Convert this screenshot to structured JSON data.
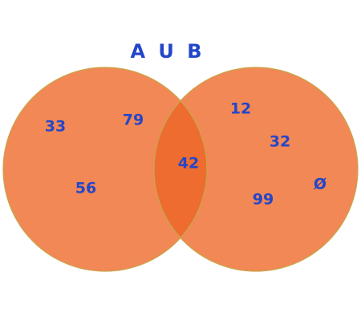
{
  "title": "A U B",
  "colors": {
    "circle_fill": "#f18856",
    "overlap_fill": "#ee6c30",
    "circle_stroke": "#c9a64a",
    "text": "#2446c8"
  },
  "set_a": {
    "label": "A",
    "only_elements": [
      "33",
      "79",
      "56"
    ]
  },
  "intersection": {
    "elements": [
      "42"
    ]
  },
  "set_b": {
    "label": "B",
    "only_elements": [
      "12",
      "32",
      "99"
    ],
    "empty_set_symbol": "Ø"
  }
}
